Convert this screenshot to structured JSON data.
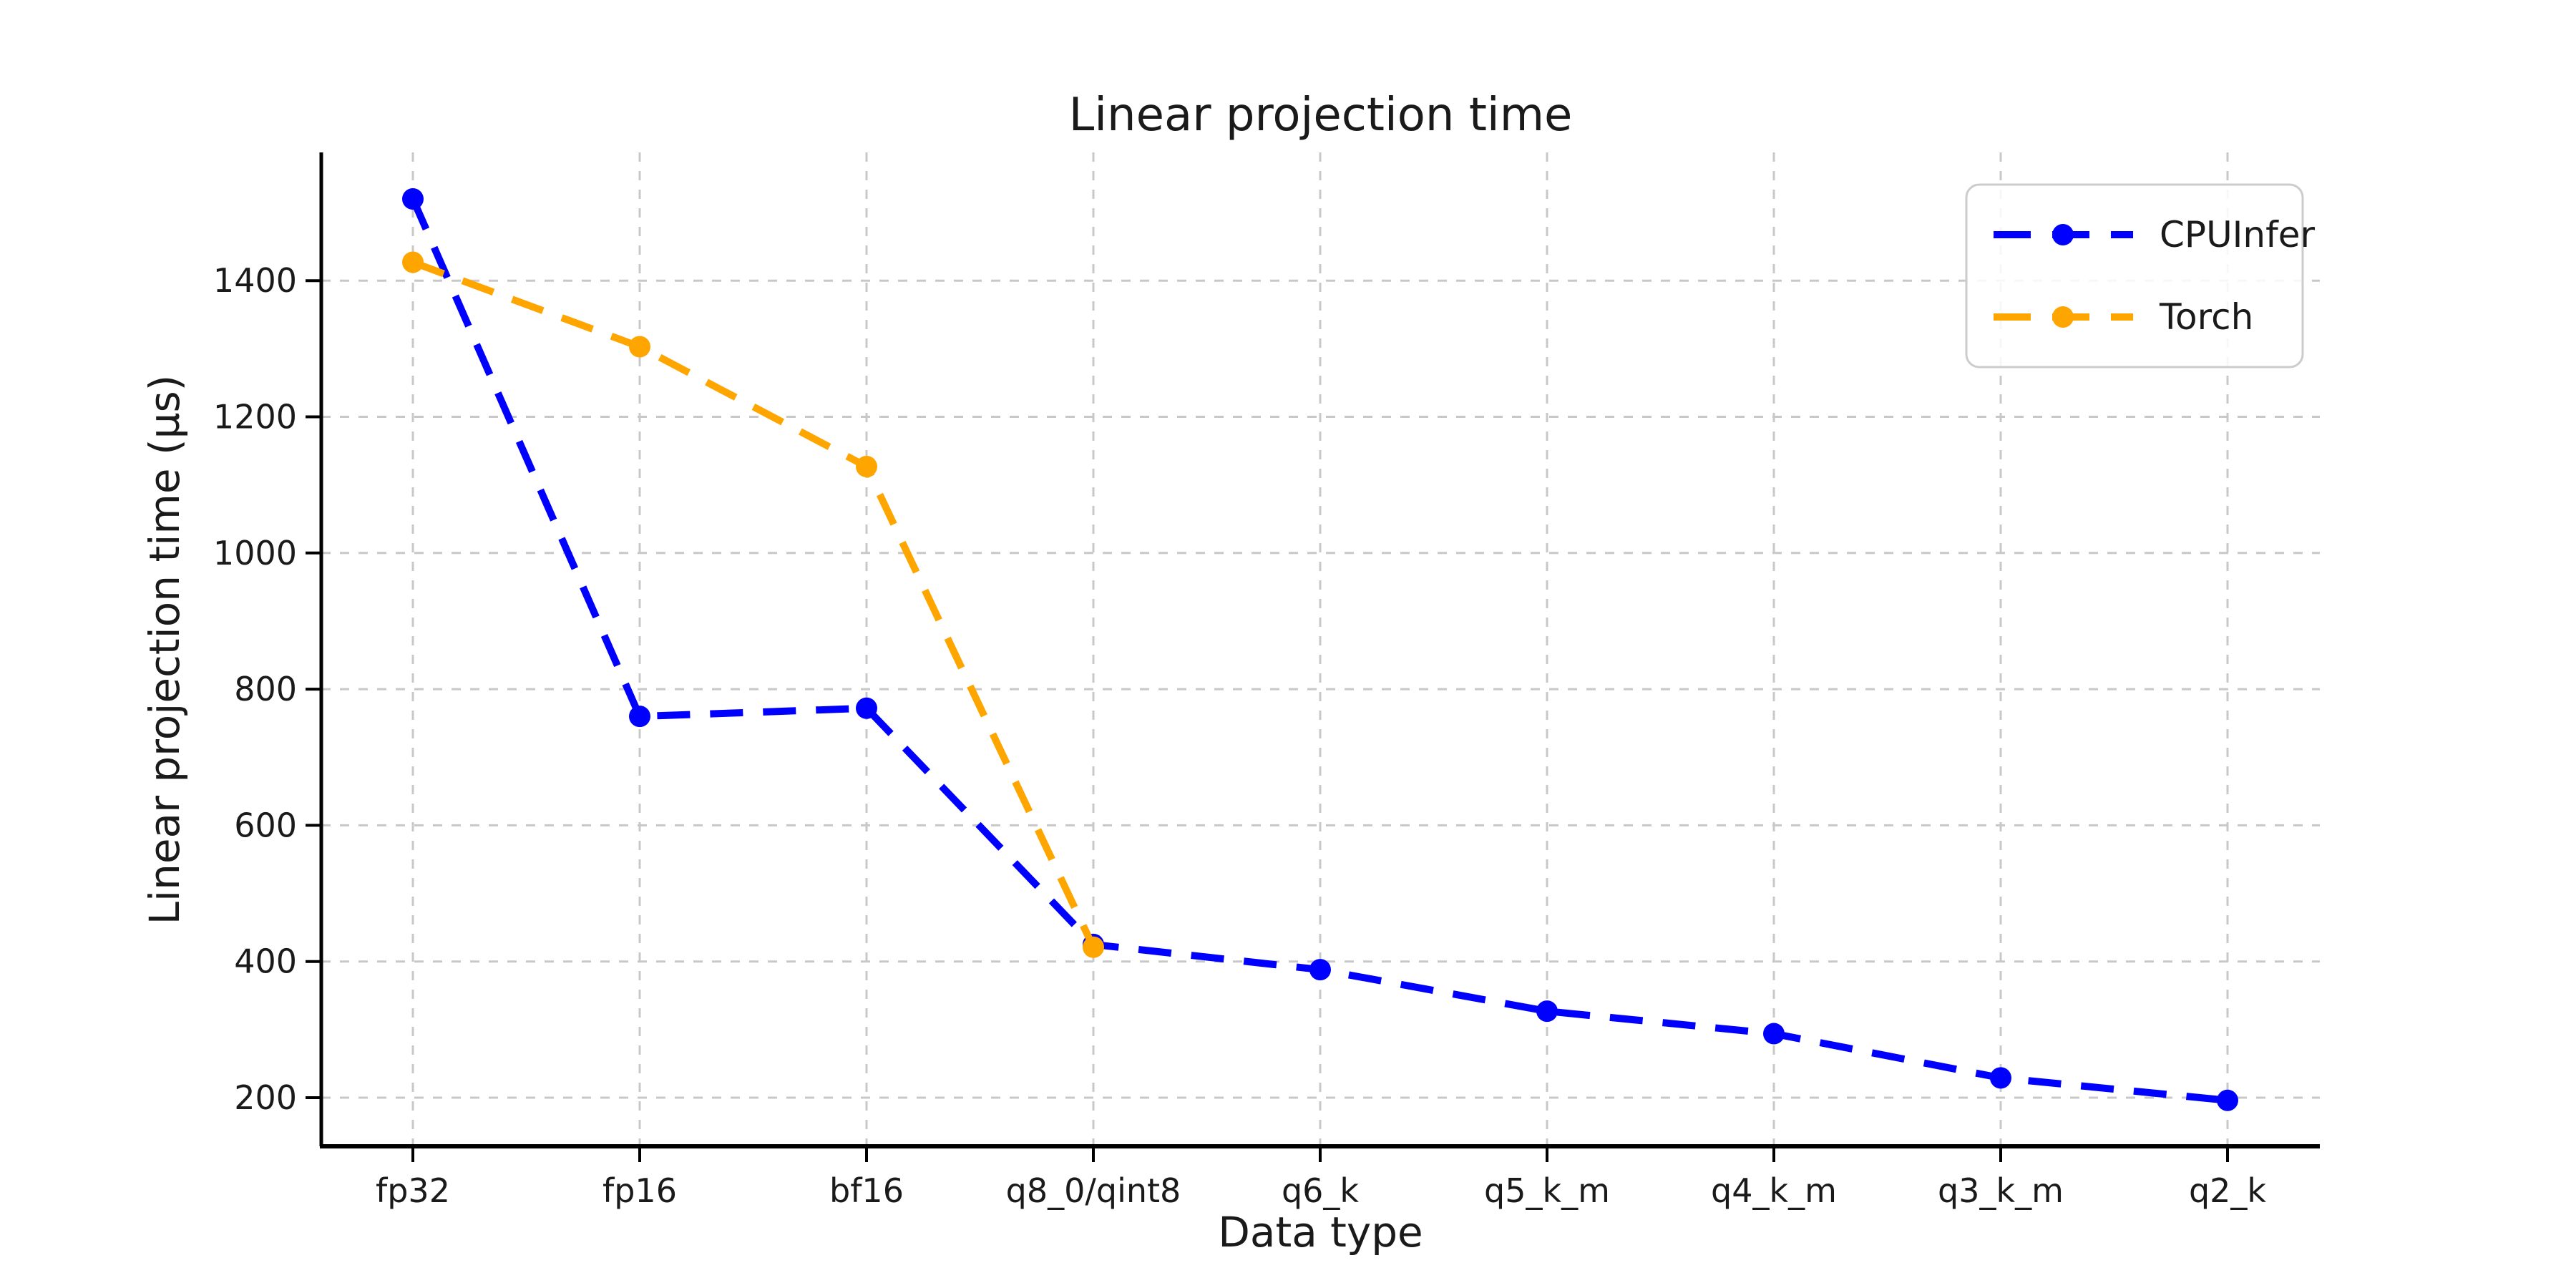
{
  "chart_data": {
    "type": "line",
    "title": "Linear projection time",
    "xlabel": "Data type",
    "ylabel": "Linear projection time (µs)",
    "categories": [
      "fp32",
      "fp16",
      "bf16",
      "q8_0/qint8",
      "q6_k",
      "q5_k_m",
      "q4_k_m",
      "q3_k_m",
      "q2_k"
    ],
    "series": [
      {
        "name": "CPUInfer",
        "color": "#0000ff",
        "line_style": "dashed",
        "marker": "circle",
        "values": [
          1520,
          760,
          772,
          425,
          388,
          327,
          294,
          229,
          196
        ]
      },
      {
        "name": "Torch",
        "color": "#ffa500",
        "line_style": "dashed",
        "marker": "circle",
        "values": [
          1427,
          1303,
          1127,
          421
        ]
      }
    ],
    "yticks": [
      200,
      400,
      600,
      800,
      1000,
      1200,
      1400
    ],
    "ylim": [
      129,
      1588
    ],
    "grid": true,
    "grid_style": "dashed",
    "legend_position": "upper right",
    "legend_labels": [
      "CPUInfer",
      "Torch"
    ]
  },
  "colors": {
    "cpuinfer": "#0000ff",
    "torch": "#ffa500",
    "grid": "#c8c8c8",
    "spine": "#000000",
    "text": "#1a1a1a",
    "legend_border": "#cccccc",
    "legend_bg": "#ffffff",
    "background": "#ffffff"
  }
}
